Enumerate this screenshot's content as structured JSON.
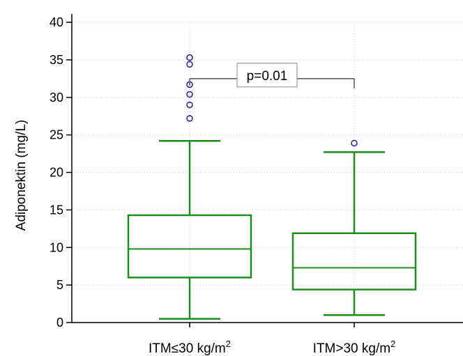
{
  "chart_data": {
    "type": "box",
    "title": "",
    "xlabel": "",
    "ylabel": "Adiponektin (mg/L)",
    "ylim": [
      0,
      40
    ],
    "yticks": [
      0,
      5,
      10,
      15,
      20,
      25,
      30,
      35,
      40
    ],
    "grid": true,
    "categories": [
      {
        "label_main": "ITM≤30 kg/m",
        "label_sup": "2"
      },
      {
        "label_main": "ITM>30 kg/m",
        "label_sup": "2"
      }
    ],
    "series": [
      {
        "whisker_low": 0.5,
        "q1": 6.0,
        "median": 9.8,
        "q3": 14.3,
        "whisker_high": 24.2,
        "outliers": [
          27.2,
          29.0,
          30.4,
          31.7,
          34.4,
          35.3
        ]
      },
      {
        "whisker_low": 1.0,
        "q1": 4.4,
        "median": 7.3,
        "q3": 11.9,
        "whisker_high": 22.7,
        "outliers": [
          23.9
        ]
      }
    ],
    "annotation": {
      "text": "p=0.01",
      "y": 32.5
    },
    "colors": {
      "box": "#1e8c1e",
      "outlier": "#2a2aa6",
      "grid": "#cfcfcf",
      "bracket": "#555555"
    }
  }
}
